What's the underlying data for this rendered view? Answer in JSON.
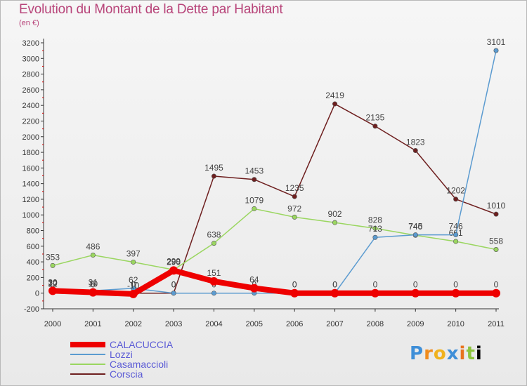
{
  "chart_data": {
    "type": "line",
    "title": "Evolution du Montant de la Dette par Habitant",
    "unit_label": "(en €)",
    "x": [
      "2000",
      "2001",
      "2002",
      "2003",
      "2004",
      "2005",
      "2006",
      "2007",
      "2008",
      "2009",
      "2010",
      "2011"
    ],
    "ylim": [
      -200,
      3200
    ],
    "yticks": [
      -200,
      0,
      200,
      400,
      600,
      800,
      1000,
      1200,
      1400,
      1600,
      1800,
      2000,
      2200,
      2400,
      2600,
      2800,
      3000,
      3200
    ],
    "grid": false,
    "legend_position": "bottom-left",
    "series": [
      {
        "name": "CALACUCCIA",
        "color": "#ee0000",
        "width": 8,
        "values": [
          30,
          10,
          -10,
          290,
          151,
          64,
          0,
          0,
          0,
          0,
          0,
          0
        ]
      },
      {
        "name": "Lozzi",
        "color": "#5b9bd0",
        "width": 1.5,
        "values": [
          12,
          31,
          62,
          0,
          0,
          0,
          0,
          0,
          713,
          745,
          746,
          3101
        ]
      },
      {
        "name": "Casamaccioli",
        "color": "#9ad660",
        "width": 1.5,
        "values": [
          353,
          486,
          397,
          299,
          638,
          1079,
          972,
          902,
          828,
          740,
          661,
          558
        ]
      },
      {
        "name": "Corscia",
        "color": "#6e1f1f",
        "width": 1.5,
        "values": [
          20,
          0,
          0,
          0,
          1495,
          1453,
          1235,
          2419,
          2135,
          1823,
          1202,
          1010
        ]
      }
    ]
  },
  "logo": {
    "letters": [
      "P",
      "r",
      "o",
      "x",
      "i",
      "t",
      "i"
    ]
  }
}
